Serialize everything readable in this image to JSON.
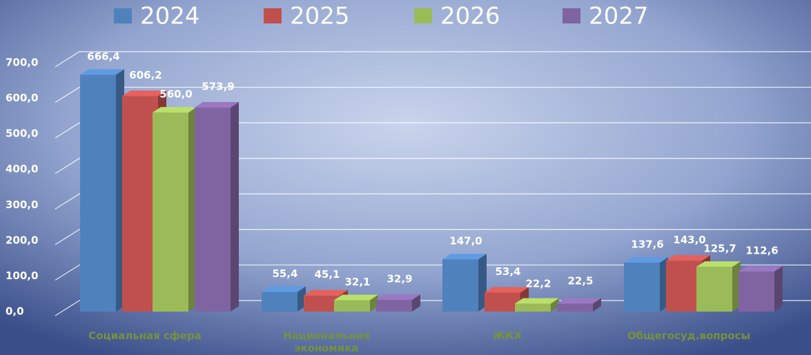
{
  "chart_data": {
    "type": "bar3d",
    "categories": [
      "Социальная сфера",
      "Национальная экономика",
      "ЖКХ",
      "Общегосуд.вопросы"
    ],
    "series": [
      {
        "name": "2024",
        "color": "#4f81bd",
        "values": [
          666.4,
          55.4,
          147.0,
          137.6
        ],
        "value_labels": [
          "666,4",
          "55,4",
          "147,0",
          "137,6"
        ]
      },
      {
        "name": "2025",
        "color": "#c0504d",
        "values": [
          606.2,
          45.1,
          53.4,
          143.0
        ],
        "value_labels": [
          "606,2",
          "45,1",
          "53,4",
          "143,0"
        ]
      },
      {
        "name": "2026",
        "color": "#9bbb59",
        "values": [
          560.0,
          32.1,
          22.2,
          125.7
        ],
        "value_labels": [
          "560,0",
          "32,1",
          "22,2",
          "125,7"
        ]
      },
      {
        "name": "2027",
        "color": "#8064a2",
        "values": [
          573.9,
          32.9,
          22.5,
          112.6
        ],
        "value_labels": [
          "573,9",
          "32,9",
          "22,5",
          "112,6"
        ]
      }
    ],
    "ylim": [
      0,
      700
    ],
    "yticks": [
      {
        "value": 0,
        "label": "0,0"
      },
      {
        "value": 100,
        "label": "100,0"
      },
      {
        "value": 200,
        "label": "200,0"
      },
      {
        "value": 300,
        "label": "300,0"
      },
      {
        "value": 400,
        "label": "400,0"
      },
      {
        "value": 500,
        "label": "500,0"
      },
      {
        "value": 600,
        "label": "600,0"
      },
      {
        "value": 700,
        "label": "700,0"
      }
    ],
    "grid": true,
    "legend": "top"
  }
}
